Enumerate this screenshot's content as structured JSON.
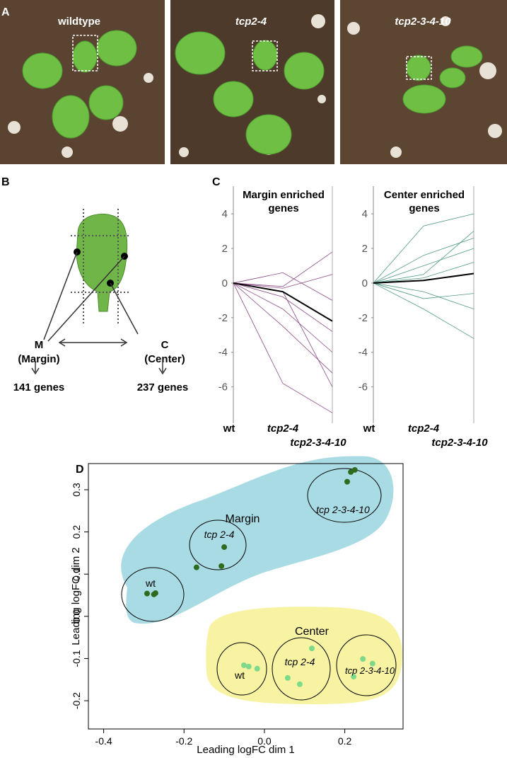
{
  "panel_labels": [
    "A",
    "B",
    "C",
    "D"
  ],
  "photos": {
    "labels": [
      "wildtype",
      "tcp2-4",
      "tcp2-3-4-10"
    ]
  },
  "diagram": {
    "margin_letter": "M",
    "margin_name": "(Margin)",
    "center_letter": "C",
    "center_name": "(Center)",
    "margin_genes": "141 genes",
    "center_genes": "237 genes"
  },
  "chart_data": [
    {
      "type": "line",
      "title": "Margin enriched genes",
      "categories": [
        "wt",
        "tcp2-4",
        "tcp2-3-4-10"
      ],
      "ylim": [
        -8.1,
        5.6
      ],
      "yticks": [
        -6,
        -4,
        -2,
        0,
        2,
        4
      ],
      "series": [
        {
          "color": "#8b4a86",
          "values": [
            0,
            -0.2,
            1.8
          ]
        },
        {
          "color": "#8b4a86",
          "values": [
            0,
            -0.5,
            -6
          ]
        },
        {
          "color": "#8b4a86",
          "values": [
            0,
            -5.8,
            -7.5
          ]
        },
        {
          "color": "#8b4a86",
          "values": [
            0,
            -0.3,
            0.5
          ]
        },
        {
          "color": "#8b4a86",
          "values": [
            0,
            -1.5,
            -4
          ]
        },
        {
          "color": "#8b4a86",
          "values": [
            0,
            0.6,
            -1
          ]
        },
        {
          "color": "#8b4a86",
          "values": [
            0,
            -2.5,
            -5.2
          ]
        },
        {
          "color": "#8b4a86",
          "values": [
            0,
            -0.8,
            -2.8
          ]
        },
        {
          "color": "#000000",
          "values": [
            0,
            -0.5,
            -2.2
          ]
        }
      ]
    },
    {
      "type": "line",
      "title": "Center enriched genes",
      "categories": [
        "wt",
        "tcp2-4",
        "tcp2-3-4-10"
      ],
      "ylim": [
        -8.1,
        5.6
      ],
      "yticks": [
        -6,
        -4,
        -2,
        0,
        2,
        4
      ],
      "series": [
        {
          "color": "#4f9a84",
          "values": [
            0,
            3.3,
            4.0
          ]
        },
        {
          "color": "#4f9a84",
          "values": [
            0,
            0.5,
            3
          ]
        },
        {
          "color": "#4f9a84",
          "values": [
            0,
            -1.5,
            -3.2
          ]
        },
        {
          "color": "#4f9a84",
          "values": [
            0,
            1.0,
            2
          ]
        },
        {
          "color": "#4f9a84",
          "values": [
            0,
            -0.5,
            -1.5
          ]
        },
        {
          "color": "#4f9a84",
          "values": [
            0,
            0.3,
            1.2
          ]
        },
        {
          "color": "#4f9a84",
          "values": [
            0,
            1.6,
            2.6
          ]
        },
        {
          "color": "#4f9a84",
          "values": [
            0,
            -0.9,
            -0.6
          ]
        },
        {
          "color": "#000000",
          "values": [
            0,
            0.15,
            0.55
          ]
        }
      ]
    },
    {
      "type": "scatter",
      "xlabel": "Leading logFC dim 1",
      "ylabel": "Leading logFC dim 2",
      "xlim": [
        -0.438,
        0.345
      ],
      "ylim": [
        -0.267,
        0.362
      ],
      "xticks": [
        -0.4,
        -0.2,
        {
          "value": 0,
          "label": "0.0"
        },
        0.2
      ],
      "yticks": [
        -0.2,
        -0.1,
        {
          "value": 0,
          "label": "0.0"
        },
        0.1,
        0.2,
        0.3
      ],
      "annotations": [
        "wt",
        "tcp 2-4",
        "tcp 2-3-4-10",
        "wt",
        "tcp 2-4",
        "tcp 2-3-4-10"
      ],
      "series": [
        {
          "name": "Margin",
          "color": "#2f6b1e",
          "x": [
            -0.292,
            -0.275,
            -0.271,
            -0.169,
            -0.107,
            -0.1,
            0.206,
            0.215,
            0.225
          ],
          "y": [
            0.054,
            0.052,
            0.055,
            0.116,
            0.119,
            0.164,
            0.319,
            0.342,
            0.347
          ]
        },
        {
          "name": "Center",
          "color": "#7ed98a",
          "x": [
            -0.051,
            -0.039,
            -0.018,
            0.058,
            0.088,
            0.118,
            0.245,
            0.269,
            0.222
          ],
          "y": [
            -0.116,
            -0.119,
            -0.124,
            -0.146,
            -0.161,
            -0.076,
            -0.101,
            -0.112,
            -0.143
          ]
        }
      ]
    }
  ]
}
